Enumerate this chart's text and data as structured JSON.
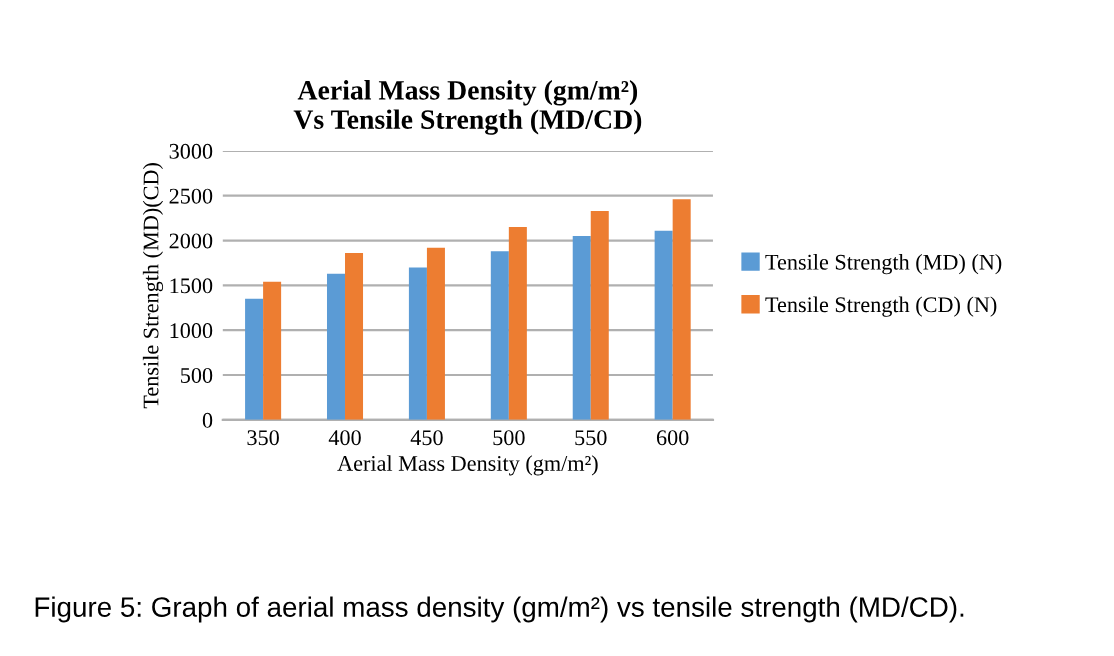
{
  "chart_data": {
    "type": "bar",
    "title": "Aerial Mass Density (gm/m²)\nVs Tensile Strength (MD/CD)",
    "xlabel": "Aerial Mass Density (gm/m²)",
    "ylabel": "Tensile Strength (MD)(CD)",
    "categories": [
      "350",
      "400",
      "450",
      "500",
      "550",
      "600"
    ],
    "series": [
      {
        "name": "Tensile Strength (MD) (N)",
        "color": "#5b9bd5",
        "values": [
          1350,
          1630,
          1700,
          1880,
          2050,
          2110
        ]
      },
      {
        "name": "Tensile Strength (CD) (N)",
        "color": "#ed7d31",
        "values": [
          1540,
          1860,
          1920,
          2150,
          2330,
          2460
        ]
      }
    ],
    "ylim": [
      0,
      3000
    ],
    "yticks": [
      0,
      500,
      1000,
      1500,
      2000,
      2500,
      3000
    ],
    "grid": "y",
    "legend": "right",
    "annotations": [
      "Figure 5: Graph of aerial mass density (gm/m²) vs tensile strength (MD/CD)."
    ]
  }
}
